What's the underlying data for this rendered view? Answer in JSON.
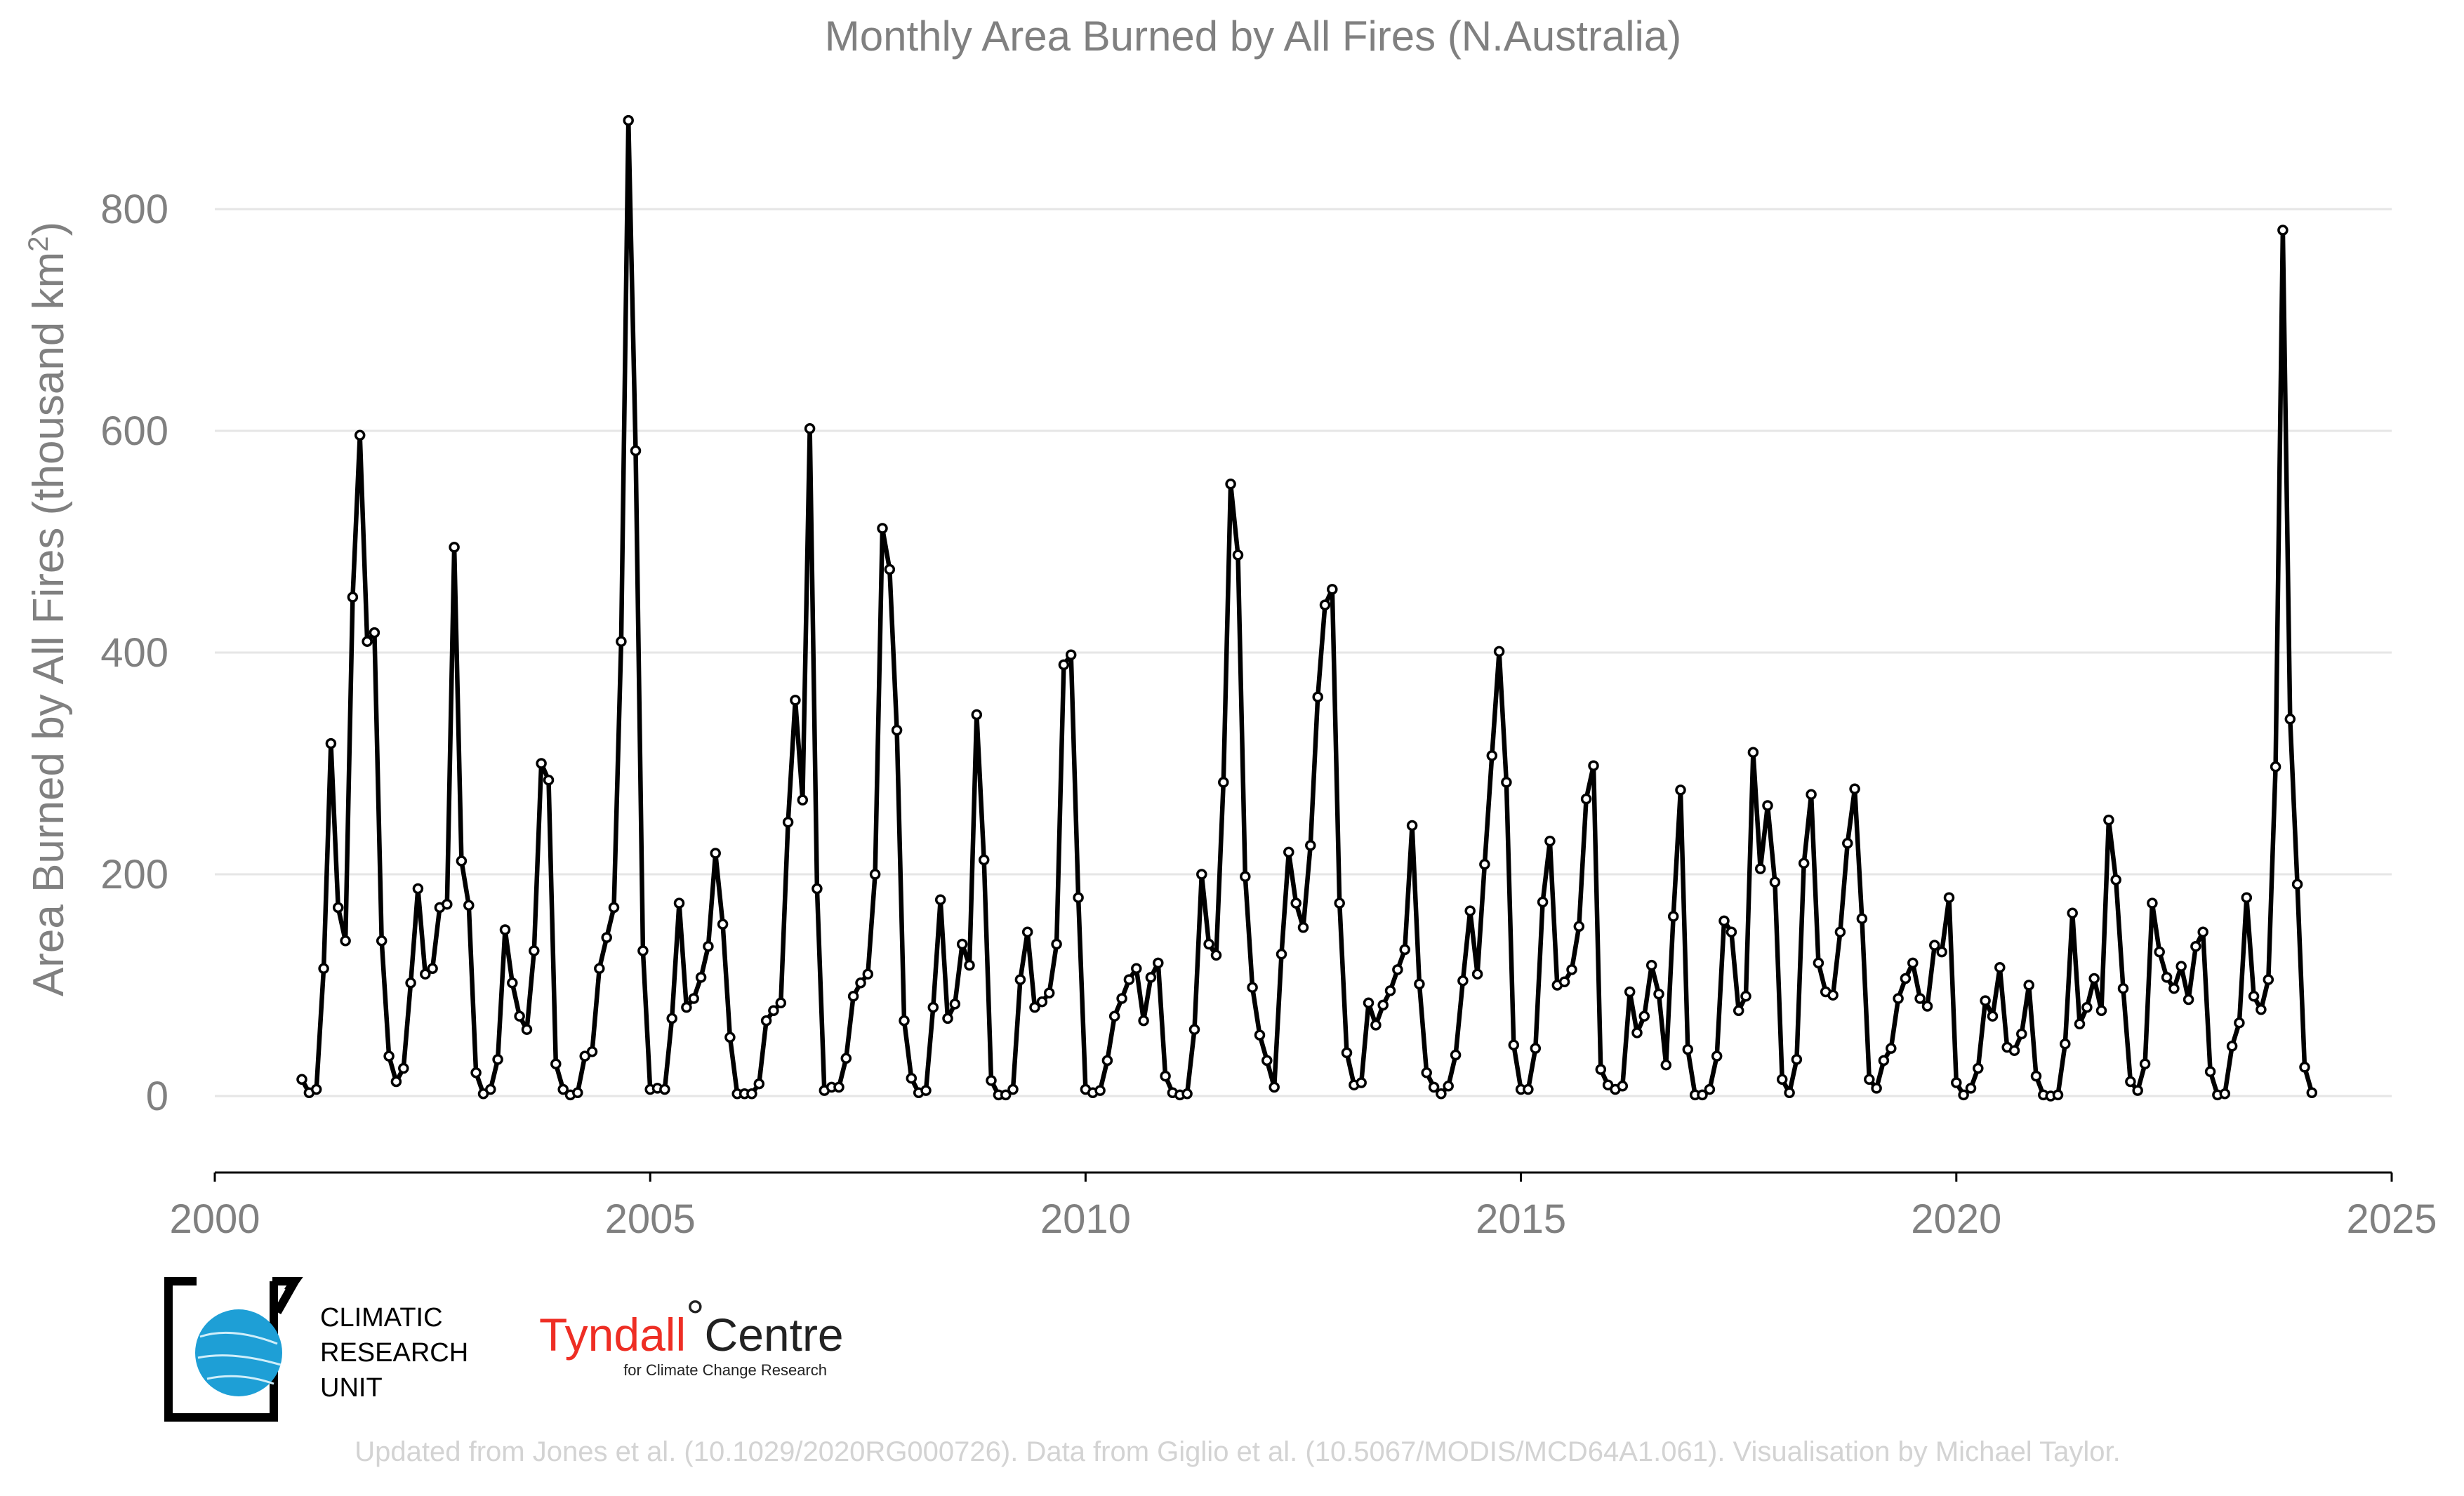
{
  "chart_data": {
    "type": "line",
    "title": "Monthly Area Burned by All Fires (N.Australia)",
    "ylabel": "Area Burned by All Fires (thousand km²)",
    "ylabel_main": "Area Burned by All Fires (thousand km",
    "ylabel_sup": "2",
    "ylabel_close": ")",
    "xlabel": "",
    "xlim": [
      2000,
      2025
    ],
    "ylim": [
      -70,
      880
    ],
    "xticks": [
      2000,
      2005,
      2010,
      2015,
      2020,
      2025
    ],
    "yticks": [
      0,
      200,
      400,
      600,
      800
    ],
    "grid": true,
    "legend": "none",
    "x_start": "2001-01",
    "x_step": "1 month",
    "series": [
      {
        "values": [
          15,
          3,
          6,
          115,
          318,
          170,
          140,
          450,
          596,
          410,
          418,
          140,
          36,
          13,
          25,
          102,
          187,
          110,
          115,
          170,
          173,
          495,
          212,
          172,
          21,
          2,
          6,
          33,
          150,
          102,
          72,
          60,
          131,
          300,
          285,
          29,
          6,
          1,
          3,
          36,
          40,
          115,
          143,
          170,
          410,
          880,
          582,
          131,
          6,
          7,
          6,
          70,
          174,
          80,
          88,
          107,
          135,
          219,
          155,
          53,
          2,
          2,
          2,
          11,
          68,
          77,
          84,
          247,
          357,
          267,
          602,
          187,
          5,
          8,
          8,
          34,
          90,
          102,
          110,
          200,
          512,
          475,
          330,
          68,
          16,
          3,
          5,
          80,
          177,
          70,
          83,
          137,
          118,
          344,
          213,
          14,
          1,
          1,
          6,
          105,
          148,
          80,
          85,
          93,
          137,
          389,
          398,
          179,
          6,
          3,
          5,
          32,
          72,
          88,
          105,
          115,
          68,
          107,
          120,
          18,
          3,
          1,
          2,
          60,
          200,
          137,
          127,
          283,
          552,
          488,
          198,
          98,
          55,
          32,
          8,
          128,
          220,
          174,
          152,
          226,
          360,
          443,
          457,
          174,
          39,
          10,
          12,
          84,
          64,
          82,
          95,
          114,
          132,
          244,
          101,
          21,
          8,
          2,
          9,
          37,
          104,
          167,
          110,
          209,
          307,
          401,
          283,
          46,
          6,
          6,
          43,
          175,
          230,
          100,
          103,
          114,
          153,
          268,
          298,
          24,
          10,
          6,
          9,
          94,
          57,
          72,
          118,
          92,
          28,
          162,
          276,
          42,
          1,
          1,
          6,
          36,
          158,
          148,
          77,
          90,
          310,
          205,
          262,
          193,
          15,
          3,
          33,
          210,
          272,
          120,
          94,
          91,
          148,
          228,
          277,
          160,
          15,
          7,
          32,
          43,
          88,
          106,
          120,
          88,
          81,
          136,
          130,
          179,
          12,
          1,
          7,
          25,
          86,
          72,
          116,
          44,
          41,
          56,
          100,
          18,
          1,
          0,
          1,
          47,
          165,
          65,
          80,
          106,
          77,
          249,
          195,
          97,
          13,
          5,
          29,
          174,
          130,
          107,
          97,
          117,
          87,
          135,
          148,
          22,
          1,
          2,
          45,
          66,
          179,
          90,
          78,
          105,
          297,
          781,
          340,
          191,
          26,
          3
        ]
      }
    ]
  },
  "logos": {
    "cru": [
      "CLIMATIC",
      "RESEARCH",
      "UNIT"
    ],
    "tyndall_name": "Tyndall",
    "tyndall_deg": "°",
    "tyndall_centre": "Centre",
    "tyndall_sub": "for Climate Change Research"
  },
  "footnote": "Updated from Jones et al. (10.1029/2020RG000726). Data from Giglio et al. (10.5067/MODIS/MCD64A1.061). Visualisation by Michael Taylor.",
  "colors": {
    "line": "#000000",
    "text": "#808080",
    "grid": "#e6e6e6",
    "footnote": "#d3d3d3",
    "tyndall_red": "#ee2e24",
    "globe": "#1e9fd6"
  }
}
